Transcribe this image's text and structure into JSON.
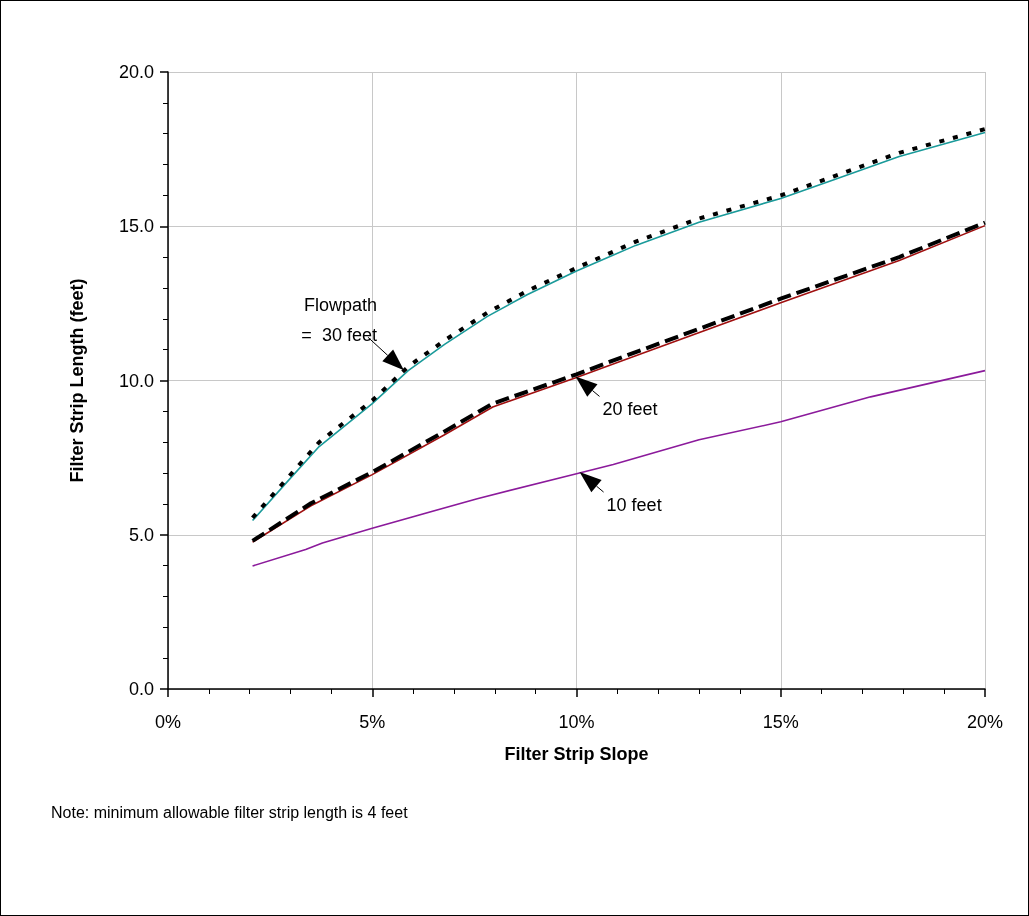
{
  "chart_data": {
    "type": "line",
    "xlabel": "Filter Strip Slope",
    "ylabel": "Filter Strip Length (feet)",
    "xlim": [
      0,
      20
    ],
    "ylim": [
      0,
      20
    ],
    "xticks": [
      {
        "value": 0,
        "label": "0%"
      },
      {
        "value": 1,
        "label": null
      },
      {
        "value": 2,
        "label": null
      },
      {
        "value": 3,
        "label": null
      },
      {
        "value": 4,
        "label": null
      },
      {
        "value": 5,
        "label": "5%"
      },
      {
        "value": 6,
        "label": null
      },
      {
        "value": 7,
        "label": null
      },
      {
        "value": 8,
        "label": null
      },
      {
        "value": 9,
        "label": null
      },
      {
        "value": 10,
        "label": "10%"
      },
      {
        "value": 11,
        "label": null
      },
      {
        "value": 12,
        "label": null
      },
      {
        "value": 13,
        "label": null
      },
      {
        "value": 14,
        "label": null
      },
      {
        "value": 15,
        "label": "15%"
      },
      {
        "value": 16,
        "label": null
      },
      {
        "value": 17,
        "label": null
      },
      {
        "value": 18,
        "label": null
      },
      {
        "value": 19,
        "label": null
      },
      {
        "value": 20,
        "label": "20%"
      }
    ],
    "yticks": [
      {
        "value": 0,
        "label": "0.0"
      },
      {
        "value": 1,
        "label": null
      },
      {
        "value": 2,
        "label": null
      },
      {
        "value": 3,
        "label": null
      },
      {
        "value": 4,
        "label": null
      },
      {
        "value": 5,
        "label": "5.0"
      },
      {
        "value": 6,
        "label": null
      },
      {
        "value": 7,
        "label": null
      },
      {
        "value": 8,
        "label": null
      },
      {
        "value": 9,
        "label": null
      },
      {
        "value": 10,
        "label": "10.0"
      },
      {
        "value": 11,
        "label": null
      },
      {
        "value": 12,
        "label": null
      },
      {
        "value": 13,
        "label": null
      },
      {
        "value": 14,
        "label": null
      },
      {
        "value": 15,
        "label": "15.0"
      },
      {
        "value": 16,
        "label": null
      },
      {
        "value": 17,
        "label": null
      },
      {
        "value": 18,
        "label": null
      },
      {
        "value": 19,
        "label": null
      },
      {
        "value": 20,
        "label": "20.0"
      }
    ],
    "grid": true,
    "marker": "none",
    "series": [
      {
        "color": "#1a9a9a",
        "line_style": "solid",
        "x": [
          2.07,
          2.9,
          3.7,
          5,
          5.88,
          6.77,
          7.82,
          8.79,
          10,
          11.45,
          13,
          15,
          16.3,
          17.9,
          20
        ],
        "values": [
          5.46,
          6.69,
          7.86,
          9.25,
          10.32,
          11.17,
          12.08,
          12.78,
          13.55,
          14.38,
          15.13,
          15.9,
          16.51,
          17.26,
          18.04
        ]
      },
      {
        "color": "#000000",
        "line_style": "dotted",
        "x": [
          2.07,
          2.9,
          3.7,
          5,
          5.88,
          6.77,
          7.82,
          8.79,
          10,
          11.45,
          13,
          15,
          16.3,
          17.9,
          20
        ],
        "values": [
          5.55,
          6.8,
          8.0,
          9.35,
          10.45,
          11.3,
          12.2,
          12.9,
          13.65,
          14.5,
          15.25,
          16.0,
          16.62,
          17.38,
          18.15
        ]
      },
      {
        "color": "#a01010",
        "line_style": "solid",
        "x": [
          2.07,
          3.5,
          5,
          6.77,
          7.95,
          10,
          11.45,
          15,
          17.9,
          20
        ],
        "values": [
          4.76,
          5.94,
          6.95,
          8.24,
          9.14,
          10.1,
          10.8,
          12.52,
          13.89,
          15.02
        ]
      },
      {
        "color": "#000000",
        "line_style": "dashed",
        "x": [
          2.07,
          3.5,
          5,
          6.77,
          7.95,
          10,
          11.45,
          15,
          17.9,
          20
        ],
        "values": [
          4.8,
          6.02,
          7.03,
          8.35,
          9.25,
          10.2,
          10.92,
          12.65,
          14.0,
          15.12
        ]
      },
      {
        "color": "#8b1a9b",
        "line_style": "solid",
        "x": [
          2.07,
          3.37,
          3.78,
          5,
          7.57,
          10,
          10.9,
          13,
          15,
          17.2,
          20
        ],
        "values": [
          3.99,
          4.52,
          4.73,
          5.21,
          6.17,
          6.98,
          7.28,
          8.08,
          8.66,
          9.47,
          10.32
        ]
      }
    ],
    "annotations": [
      {
        "text": "Flowpath\n=  30 feet",
        "x": 5.8,
        "y": 10.3
      },
      {
        "text": "20 feet",
        "x": 10,
        "y": 10.1
      },
      {
        "text": "10 feet",
        "x": 10.1,
        "y": 7.0
      },
      "Note: minimum allowable filter strip length is 4 feet"
    ]
  }
}
